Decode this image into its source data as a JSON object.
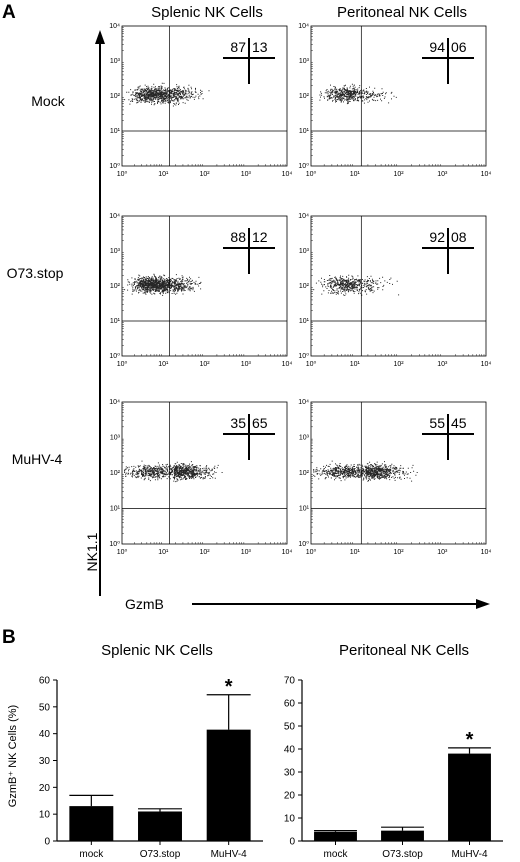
{
  "panel_a": {
    "letter": "A",
    "columns": [
      "Splenic NK Cells",
      "Peritoneal NK Cells"
    ],
    "rows": [
      "Mock",
      "O73.stop",
      "MuHV-4"
    ],
    "y_axis_label": "NK1.1",
    "x_axis_label": "GzmB",
    "log_tick_labels": [
      "10⁰",
      "10¹",
      "10²",
      "10³",
      "10⁴"
    ],
    "quadrant_values": [
      [
        [
          "87",
          "13"
        ],
        [
          "94",
          "06"
        ]
      ],
      [
        [
          "88",
          "12"
        ],
        [
          "92",
          "08"
        ]
      ],
      [
        [
          "35",
          "65"
        ],
        [
          "55",
          "45"
        ]
      ]
    ],
    "dot_color": "#000000"
  },
  "panel_b": {
    "letter": "B",
    "y_axis_label": "GzmB⁺ NK Cells (%)"
  },
  "chart_data": [
    {
      "type": "bar",
      "title": "Splenic NK Cells",
      "xlabel": "",
      "ylabel": "GzmB⁺ NK Cells (%)",
      "categories": [
        "mock",
        "O73.stop",
        "MuHV-4"
      ],
      "values": [
        13,
        11,
        41.5
      ],
      "error": [
        4,
        1,
        13
      ],
      "significance": [
        "",
        "",
        "*"
      ],
      "ylim": [
        0,
        60
      ],
      "yticks": [
        0,
        10,
        20,
        30,
        40,
        50,
        60
      ],
      "bar_color": "#000000",
      "grid": false,
      "legend": "none"
    },
    {
      "type": "bar",
      "title": "Peritoneal NK Cells",
      "xlabel": "",
      "ylabel": "",
      "categories": [
        "mock",
        "O73.stop",
        "MuHV-4"
      ],
      "values": [
        4,
        4.5,
        38
      ],
      "error": [
        0.5,
        1.5,
        2.5
      ],
      "significance": [
        "",
        "",
        "*"
      ],
      "ylim": [
        0,
        70
      ],
      "yticks": [
        0,
        10,
        20,
        30,
        40,
        50,
        60,
        70
      ],
      "bar_color": "#000000",
      "grid": false,
      "legend": "none"
    }
  ]
}
